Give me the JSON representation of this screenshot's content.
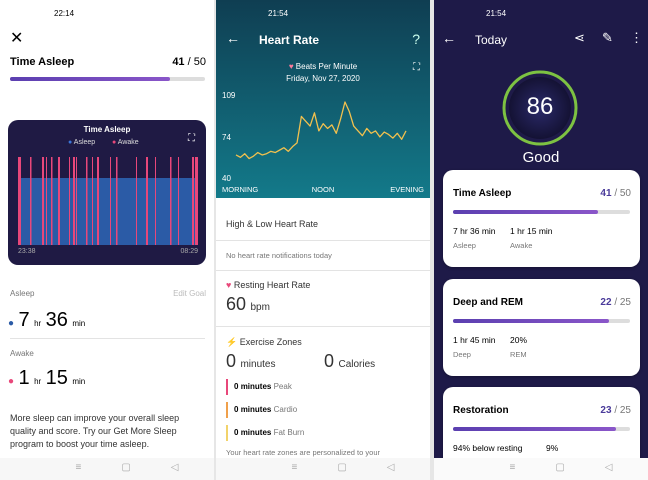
{
  "screens": [
    {
      "status_time": "22:14",
      "title": "Time Asleep",
      "score": 41,
      "separator": "/",
      "goal": 50,
      "card": {
        "title": "Time Asleep",
        "legend": [
          "Asleep",
          "Awake"
        ],
        "start": "23:38",
        "end": "08:29"
      },
      "asleep": {
        "label": "Asleep",
        "action": "Edit Goal",
        "hours": 7,
        "hours_unit": "hr",
        "minutes": 36,
        "minutes_unit": "min"
      },
      "awake": {
        "label": "Awake",
        "hours": 1,
        "hours_unit": "hr",
        "minutes": 15,
        "minutes_unit": "min"
      },
      "note": "More sleep can improve your overall sleep quality and score. Try our Get More Sleep program to boost your time asleep."
    },
    {
      "status_time": "21:54",
      "title": "Heart Rate",
      "help": "?",
      "chart": {
        "type": "line",
        "subtitle": "Beats Per Minute",
        "date": "Friday, Nov 27, 2020",
        "ylim": [
          40,
          109
        ],
        "yticks": [
          40,
          74,
          109
        ],
        "x_labels": [
          "MORNING",
          "NOON",
          "EVENING"
        ],
        "color": "#f2c14e",
        "values": [
          60,
          58,
          61,
          57,
          59,
          62,
          60,
          61,
          63,
          62,
          64,
          66,
          63,
          67,
          70,
          92,
          88,
          84,
          95,
          80,
          86,
          82,
          85,
          78,
          90,
          104,
          96,
          84,
          80,
          76,
          82,
          78,
          80,
          75,
          79,
          77,
          74,
          78,
          73,
          80
        ]
      },
      "high_low": {
        "title": "High & Low Heart Rate",
        "note": "No heart rate notifications today"
      },
      "resting": {
        "title": "Resting Heart Rate",
        "value": 60,
        "unit": "bpm"
      },
      "zones": {
        "title": "Exercise Zones",
        "minutes": 0,
        "minutes_unit": "minutes",
        "calories": 0,
        "calories_unit": "Calories",
        "rows": [
          {
            "value": 0,
            "unit": "minutes",
            "zone": "Peak"
          },
          {
            "value": 0,
            "unit": "minutes",
            "zone": "Cardio"
          },
          {
            "value": 0,
            "unit": "minutes",
            "zone": "Fat Burn"
          }
        ],
        "footer": "Your heart rate zones are personalized to your"
      }
    },
    {
      "status_time": "21:54",
      "title": "Today",
      "score": 86,
      "rating": "Good",
      "cards": [
        {
          "title": "Time Asleep",
          "score": 41,
          "separator": "/",
          "goal": 50,
          "stats": [
            {
              "value": "7 hr 36 min",
              "label": "Asleep"
            },
            {
              "value": "1 hr 15 min",
              "label": "Awake"
            }
          ]
        },
        {
          "title": "Deep and REM",
          "score": 22,
          "separator": "/",
          "goal": 25,
          "stats": [
            {
              "value": "1 hr 45 min",
              "label": "Deep"
            },
            {
              "value": "20%",
              "label": "REM"
            }
          ]
        },
        {
          "title": "Restoration",
          "score": 23,
          "separator": "/",
          "goal": 25,
          "stats": [
            {
              "value": "94% below resting"
            },
            {
              "value": "9%"
            }
          ]
        }
      ]
    }
  ]
}
